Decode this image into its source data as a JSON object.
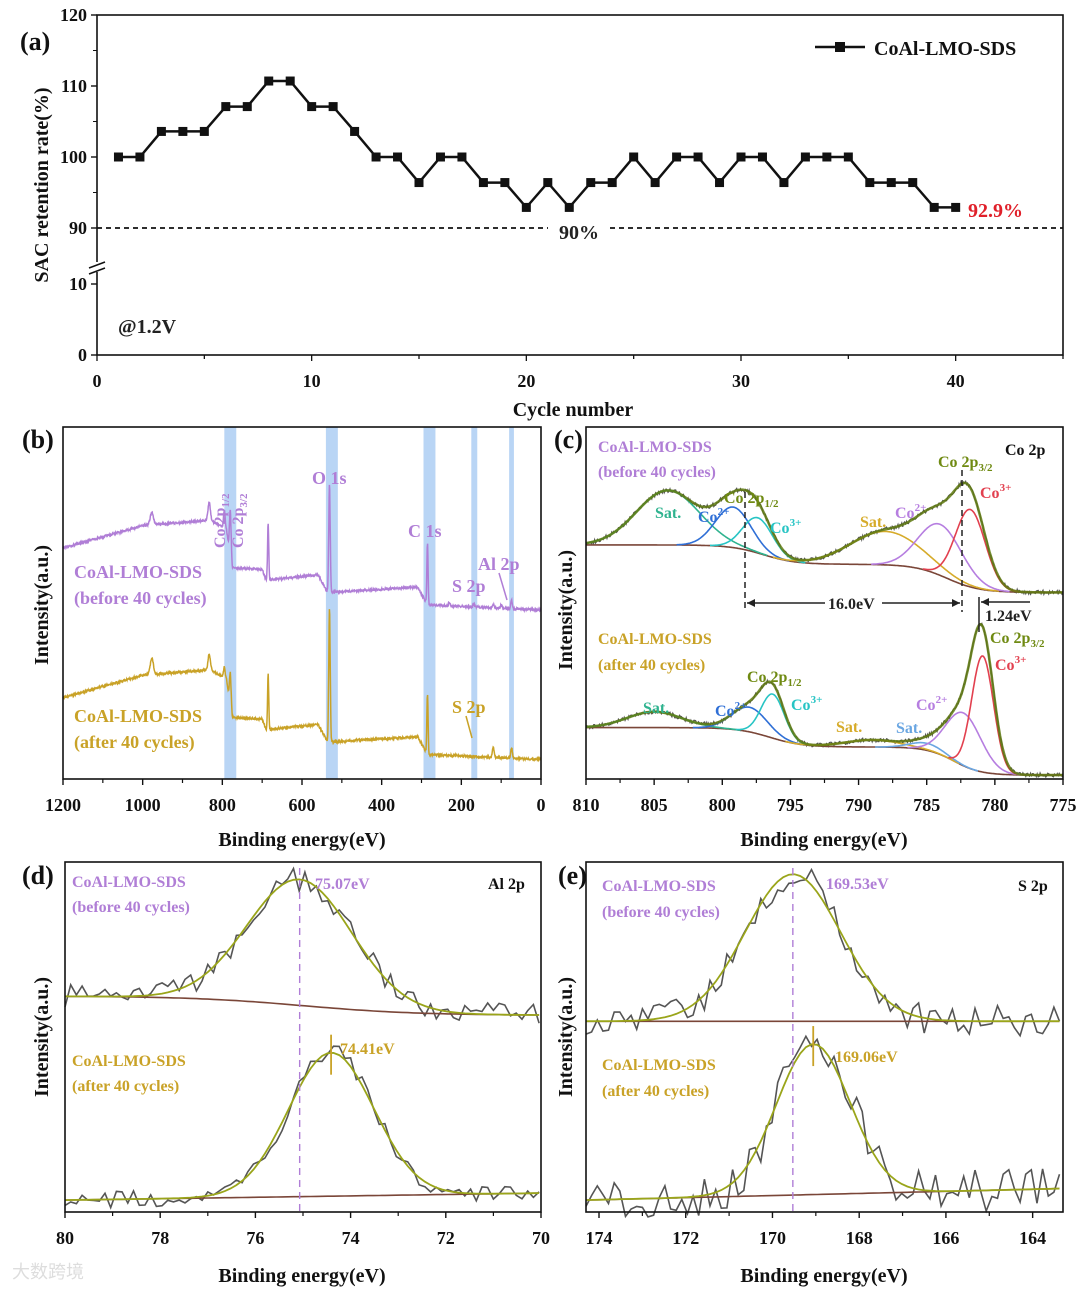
{
  "colors": {
    "purple": "#b07ed6",
    "gold": "#c9a227",
    "olive": "#6f8a12",
    "data": "#555555",
    "background": "#7a4638",
    "band": "#b9d5f5",
    "red_text": "#e0202a",
    "co2_blue": "#2f6fd6",
    "co3_cyan": "#27c4c4",
    "co3_red": "#e2404f",
    "co2_purple": "#b67ee0",
    "sat_teal": "#2fb38f",
    "sat_gold": "#d6ab2a",
    "sat_blue": "#6aa6e2"
  },
  "watermark": "大数跨境",
  "chart_data": [
    {
      "panel": "(a)",
      "type": "line",
      "xlabel": "Cycle number",
      "ylabel": "SAC retention rate(%)",
      "xlim": [
        0,
        45
      ],
      "xticks": [
        0,
        10,
        20,
        30,
        40
      ],
      "yticks": [
        0,
        10,
        90,
        100,
        110,
        120
      ],
      "y_break": [
        10,
        90
      ],
      "legend": {
        "label": "CoAl-LMO-SDS",
        "position": "top-right"
      },
      "reference_line": {
        "y": 90,
        "label": "90%"
      },
      "final_label": "92.9%",
      "condition": "@1.2V",
      "series": [
        {
          "name": "CoAl-LMO-SDS",
          "x": [
            1,
            2,
            3,
            4,
            5,
            6,
            7,
            8,
            9,
            10,
            11,
            12,
            13,
            14,
            15,
            16,
            17,
            18,
            19,
            20,
            21,
            22,
            23,
            24,
            25,
            26,
            27,
            28,
            29,
            30,
            31,
            32,
            33,
            34,
            35,
            36,
            37,
            38,
            39,
            40
          ],
          "y": [
            100,
            100,
            103.6,
            103.6,
            103.6,
            107.1,
            107.1,
            110.7,
            110.7,
            107.1,
            107.1,
            103.6,
            100,
            100,
            96.4,
            100,
            100,
            96.4,
            96.4,
            92.9,
            96.4,
            92.9,
            96.4,
            96.4,
            100,
            96.4,
            100,
            100,
            96.4,
            100,
            100,
            96.4,
            100,
            100,
            100,
            96.4,
            96.4,
            96.4,
            92.9,
            92.9
          ]
        }
      ]
    },
    {
      "panel": "(b)",
      "type": "line",
      "xlabel": "Binding energy(eV)",
      "ylabel": "Intensity(a.u.)",
      "xlim": [
        1200,
        0
      ],
      "xticks": [
        1200,
        1000,
        800,
        600,
        400,
        200,
        0
      ],
      "ylim": [
        0,
        10
      ],
      "highlight_bands": [
        [
          795,
          765
        ],
        [
          540,
          510
        ],
        [
          295,
          265
        ],
        [
          175,
          160
        ],
        [
          80,
          68
        ]
      ],
      "peak_labels": {
        "co_half": "Co 2p",
        "co_half_sub": "1/2",
        "co_three": "Co 2p",
        "co_three_sub": "3/2",
        "o1s": "O 1s",
        "c1s": "C 1s",
        "s2p": "S 2p",
        "al2p": "Al 2p",
        "s2p_after": "S 2p"
      },
      "series": [
        {
          "name": "CoAl-LMO-SDS",
          "note": "(before 40 cycles)",
          "color": "purple",
          "offset": 0,
          "baseline": [
            [
              1200,
              6.56
            ],
            [
              1000,
              7.2
            ],
            [
              830,
              7.35
            ],
            [
              790,
              7.1
            ],
            [
              775,
              6.0
            ],
            [
              700,
              5.95
            ],
            [
              690,
              5.65
            ],
            [
              560,
              5.8
            ],
            [
              535,
              5.3
            ],
            [
              310,
              5.45
            ],
            [
              285,
              4.95
            ],
            [
              0,
              4.8
            ]
          ],
          "peaks": [
            [
              977,
              0.35,
              4
            ],
            [
              833,
              0.5,
              3
            ],
            [
              795,
              0.5,
              2
            ],
            [
              780,
              1.3,
              2
            ],
            [
              685,
              1.6,
              1.5
            ],
            [
              531,
              3.1,
              1.8
            ],
            [
              285,
              1.75,
              1.5
            ],
            [
              230,
              0.1,
              2
            ],
            [
              168,
              0.1,
              2
            ],
            [
              120,
              0.1,
              2
            ],
            [
              100,
              0.1,
              2
            ],
            [
              74,
              0.25,
              2
            ]
          ]
        },
        {
          "name": "CoAl-LMO-SDS",
          "note": "(after 40 cycles)",
          "color": "gold",
          "offset": -4.25,
          "baseline": [
            [
              1200,
              6.56
            ],
            [
              1000,
              7.2
            ],
            [
              830,
              7.35
            ],
            [
              790,
              7.1
            ],
            [
              775,
              6.0
            ],
            [
              700,
              5.95
            ],
            [
              690,
              5.65
            ],
            [
              560,
              5.8
            ],
            [
              535,
              5.3
            ],
            [
              310,
              5.45
            ],
            [
              285,
              4.95
            ],
            [
              0,
              4.8
            ]
          ],
          "peaks": [
            [
              977,
              0.45,
              4
            ],
            [
              833,
              0.45,
              3
            ],
            [
              795,
              0.3,
              2
            ],
            [
              780,
              0.9,
              2
            ],
            [
              685,
              1.6,
              1.5
            ],
            [
              531,
              3.8,
              1.8
            ],
            [
              285,
              1.7,
              1.5
            ],
            [
              120,
              0.3,
              2
            ],
            [
              74,
              0.3,
              2
            ]
          ]
        }
      ]
    },
    {
      "panel": "(c)",
      "type": "line",
      "title": "Co 2p",
      "xlabel": "Binding energy(eV)",
      "ylabel": "Intensity(a.u.)",
      "xlim": [
        810,
        775
      ],
      "xticks": [
        810,
        805,
        800,
        795,
        790,
        785,
        780,
        775
      ],
      "ylim": [
        0,
        10
      ],
      "splitting_label": "16.0eV",
      "shift_label": "1.24eV",
      "series": [
        {
          "name": "CoAl-LMO-SDS",
          "note": "(before 40 cycles)",
          "color": "purple",
          "background": {
            "base": 5.3,
            "slope": 0,
            "ref": 775,
            "steps": [
              [
                783.5,
                0.8,
                1.2
              ],
              [
                797,
                0.55,
                1.2
              ]
            ]
          },
          "noise": 0.06,
          "main_labels": {
            "p12": "Co 2p",
            "p12_sub": "1/2",
            "p32": "Co 2p",
            "p32_sub": "3/2"
          },
          "peaks": [
            {
              "label": "Sat.",
              "center": 804,
              "amp": 1.55,
              "sigma": 2.3,
              "color": "sat_teal"
            },
            {
              "label": "Co",
              "sup": "2+",
              "center": 799.2,
              "amp": 1.15,
              "sigma": 1.3,
              "color": "co2_blue"
            },
            {
              "label": "Co",
              "sup": "3+",
              "center": 797.4,
              "amp": 1.0,
              "sigma": 1.1,
              "color": "co3_cyan"
            },
            {
              "label": "Sat.",
              "center": 788,
              "amp": 0.95,
              "sigma": 2.6,
              "color": "sat_gold"
            },
            {
              "label": "Co",
              "sup": "2+",
              "center": 784,
              "amp": 1.45,
              "sigma": 1.6,
              "color": "co2_purple"
            },
            {
              "label": "Co",
              "sup": "3+",
              "center": 781.8,
              "amp": 2.2,
              "sigma": 1.1,
              "color": "co3_red"
            }
          ]
        },
        {
          "name": "CoAl-LMO-SDS",
          "note": "(after 40 cycles)",
          "color": "gold",
          "background": {
            "base": 0.11,
            "slope": 0,
            "ref": 775,
            "steps": [
              [
                783,
                0.8,
                1.0
              ],
              [
                796.5,
                0.55,
                1.2
              ]
            ]
          },
          "noise": 0.06,
          "main_labels": {
            "p12": "Co 2p",
            "p12_sub": "1/2",
            "p32": "Co 2p",
            "p32_sub": "3/2"
          },
          "peaks": [
            {
              "label": "Sat.",
              "center": 805,
              "amp": 0.45,
              "sigma": 2,
              "color": "sat_teal"
            },
            {
              "label": "Co",
              "sup": "2+",
              "center": 798,
              "amp": 0.7,
              "sigma": 1.3,
              "color": "co2_blue"
            },
            {
              "label": "Co",
              "sup": "3+",
              "center": 796.3,
              "amp": 1.25,
              "sigma": 0.85,
              "color": "co3_cyan"
            },
            {
              "label": "Sat.",
              "center": 789,
              "amp": 0.2,
              "sigma": 2,
              "color": "sat_gold"
            },
            {
              "label": "Sat.",
              "center": 785,
              "amp": 0.2,
              "sigma": 1.2,
              "color": "sat_blue"
            },
            {
              "label": "Co",
              "sup": "2+",
              "center": 782.3,
              "amp": 1.5,
              "sigma": 1.3,
              "color": "co2_purple"
            },
            {
              "label": "Co",
              "sup": "3+",
              "center": 780.9,
              "amp": 3.3,
              "sigma": 0.8,
              "color": "co3_red"
            }
          ]
        }
      ]
    },
    {
      "panel": "(d)",
      "type": "line",
      "title": "Al 2p",
      "xlabel": "Binding energy(eV)",
      "ylabel": "Intensity(a.u.)",
      "xlim": [
        80,
        70
      ],
      "xticks": [
        80,
        78,
        76,
        74,
        72,
        70
      ],
      "ylim": [
        0,
        10
      ],
      "series": [
        {
          "name": "CoAl-LMO-SDS",
          "note": "(before 40 cycles)",
          "color": "purple",
          "peak_label": "75.07eV",
          "background": {
            "base": 5.62,
            "slope": 0,
            "ref": 70,
            "steps": [
              [
                75,
                0.55,
                1.2
              ]
            ]
          },
          "noise": 0.35,
          "peaks": [
            {
              "center": 75.07,
              "amp": 3.6,
              "sigma": 1.1
            }
          ]
        },
        {
          "name": "CoAl-LMO-SDS",
          "note": "(after 40 cycles)",
          "color": "gold",
          "peak_label": "74.41eV",
          "background": {
            "base": 0.34,
            "slope": -0.02,
            "ref": 80,
            "steps": []
          },
          "noise": 0.25,
          "peaks": [
            {
              "center": 74.41,
              "amp": 4.1,
              "sigma": 0.9
            }
          ]
        }
      ]
    },
    {
      "panel": "(e)",
      "type": "line",
      "title": "S 2p",
      "xlabel": "Binding energy(eV)",
      "ylabel": "Intensity(a.u.)",
      "xlim": [
        174.3,
        163.3
      ],
      "xticks": [
        174,
        172,
        170,
        168,
        166,
        164
      ],
      "ylim": [
        0,
        10
      ],
      "series": [
        {
          "name": "CoAl-LMO-SDS",
          "note": "(before 40 cycles)",
          "color": "purple",
          "peak_label": "169.53eV",
          "background": {
            "base": 5.45,
            "slope": 0,
            "ref": 174,
            "steps": []
          },
          "noise": 0.45,
          "peaks": [
            {
              "center": 169.53,
              "amp": 4.2,
              "sigma": 1.1
            }
          ]
        },
        {
          "name": "CoAl-LMO-SDS",
          "note": "(after 40 cycles)",
          "color": "gold",
          "peak_label": "169.06eV",
          "background": {
            "base": 0.35,
            "slope": -0.03,
            "ref": 174,
            "steps": []
          },
          "noise": 0.6,
          "peaks": [
            {
              "center": 169.06,
              "amp": 4.3,
              "sigma": 0.85
            }
          ]
        }
      ]
    }
  ]
}
